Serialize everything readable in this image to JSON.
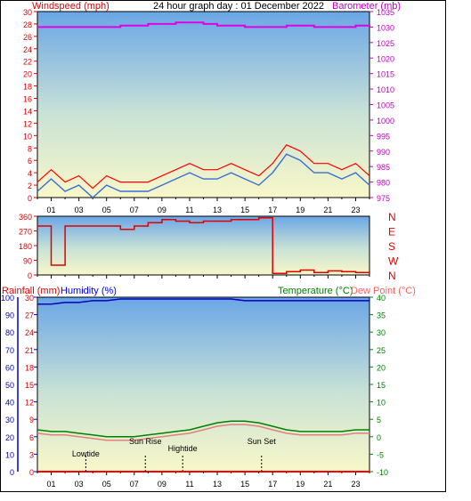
{
  "title": "24 hour graph day : 01 December 2022",
  "colors": {
    "wind": "#e00000",
    "gust": "#ff0000",
    "avg": "#3a6fd0",
    "baro": "#e000e0",
    "dir": "#e00000",
    "humidity": "#0000c0",
    "temp": "#008000",
    "dew": "#e08080",
    "rain": "#ff0000",
    "label_red": "#ff0000",
    "label_purple": "#c000c0",
    "label_green": "#008000",
    "label_blue": "#0000ff",
    "label_pink": "#ff6060"
  },
  "x_ticks": [
    "01",
    "03",
    "05",
    "07",
    "09",
    "11",
    "13",
    "15",
    "17",
    "19",
    "21",
    "23"
  ],
  "chart_data": [
    {
      "type": "line",
      "title": "24 hour graph day : 01 December 2022",
      "ylabel": "Windspeed (mph)",
      "y2label": "Barometer (mb)",
      "ylim": [
        0,
        30
      ],
      "y_ticks": [
        "0",
        "2",
        "4",
        "6",
        "8",
        "10",
        "12",
        "14",
        "16",
        "18",
        "20",
        "22",
        "24",
        "26",
        "28",
        "30"
      ],
      "y2lim": [
        975,
        1035
      ],
      "y2_ticks": [
        "975",
        "980",
        "985",
        "990",
        "995",
        "1000",
        "1005",
        "1010",
        "1015",
        "1020",
        "1025",
        "1030",
        "1035"
      ],
      "x": [
        0,
        1,
        2,
        3,
        4,
        5,
        6,
        7,
        8,
        9,
        10,
        11,
        12,
        13,
        14,
        15,
        16,
        17,
        18,
        19,
        20,
        21,
        22,
        23,
        24
      ],
      "series": [
        {
          "name": "Windspeed",
          "values": [
            1,
            3,
            1,
            2,
            0,
            2,
            1,
            1,
            1,
            2,
            3,
            4,
            3,
            3,
            4,
            3,
            2,
            4,
            7,
            6,
            4,
            4,
            3,
            4,
            2
          ]
        },
        {
          "name": "Barometer",
          "values": [
            1030,
            1030,
            1030,
            1030,
            1030,
            1030,
            1030.5,
            1030.5,
            1031,
            1031,
            1031.5,
            1031.5,
            1031,
            1030.5,
            1030.5,
            1030,
            1030,
            1030,
            1030.5,
            1030.5,
            1030,
            1030,
            1030,
            1030.5,
            1030
          ]
        }
      ]
    },
    {
      "type": "line",
      "ylim": [
        0,
        360
      ],
      "y_ticks": [
        "0",
        "90",
        "180",
        "270",
        "360"
      ],
      "y2_ticks": [
        "N",
        "W",
        "S",
        "E",
        "N"
      ],
      "x": [
        0,
        1,
        2,
        3,
        4,
        5,
        6,
        7,
        8,
        9,
        10,
        11,
        12,
        13,
        14,
        15,
        16,
        17,
        18,
        19,
        20,
        21,
        22,
        23,
        24
      ],
      "series": [
        {
          "name": "Wind Direction",
          "values": [
            300,
            60,
            300,
            300,
            300,
            300,
            280,
            300,
            320,
            340,
            330,
            320,
            330,
            330,
            340,
            340,
            350,
            10,
            20,
            30,
            15,
            25,
            20,
            15,
            20
          ]
        }
      ]
    },
    {
      "type": "line",
      "ylabel": "Rainfall (mm)",
      "ylabel2": "Humidity (%)",
      "y2label": "Temperature (°C)",
      "y2label2": "Dew Point (°C)",
      "ylim": [
        0,
        100
      ],
      "y_ticks": [
        "0",
        "10",
        "20",
        "30",
        "40",
        "50",
        "60",
        "70",
        "80",
        "90",
        "100"
      ],
      "rain_ticks": [
        "0",
        "3",
        "6",
        "9",
        "12",
        "15",
        "18",
        "21",
        "24",
        "27",
        "30"
      ],
      "y2lim": [
        -10,
        40
      ],
      "y2_ticks": [
        "-10",
        "-5",
        "0",
        "5",
        "10",
        "15",
        "20",
        "25",
        "30",
        "35",
        "40"
      ],
      "x": [
        0,
        1,
        2,
        3,
        4,
        5,
        6,
        7,
        8,
        9,
        10,
        11,
        12,
        13,
        14,
        15,
        16,
        17,
        18,
        19,
        20,
        21,
        22,
        23,
        24
      ],
      "series": [
        {
          "name": "Humidity",
          "values": [
            96,
            96,
            97,
            97,
            98,
            98,
            99,
            99,
            99,
            99,
            99,
            99,
            99,
            99,
            99,
            98,
            98,
            98,
            98,
            98,
            98,
            98,
            98,
            98,
            98
          ]
        },
        {
          "name": "Temperature",
          "values": [
            2,
            1.5,
            1.5,
            1,
            0.5,
            0,
            0,
            0,
            0.5,
            1,
            1.5,
            2,
            3,
            4,
            4.5,
            4.5,
            4,
            3,
            2,
            1.5,
            1.5,
            1.5,
            1.5,
            2,
            2
          ]
        },
        {
          "name": "Dew Point",
          "values": [
            1,
            0.5,
            0.5,
            0,
            -0.5,
            -1,
            -1,
            -1,
            -0.5,
            0,
            0.5,
            1,
            2,
            3,
            3.5,
            3.5,
            3,
            2,
            1,
            0.5,
            0.5,
            0.5,
            0.5,
            1,
            1
          ]
        },
        {
          "name": "Rainfall",
          "values": [
            0,
            0,
            0,
            0,
            0,
            0,
            0,
            0,
            0,
            0,
            0,
            0,
            0,
            0,
            0,
            0,
            0,
            0,
            0,
            0,
            0,
            0,
            0,
            0,
            0
          ]
        }
      ],
      "annotations": [
        {
          "text": "Lowtide",
          "x": 3.5
        },
        {
          "text": "Sun Rise",
          "x": 7.8
        },
        {
          "text": "Hightide",
          "x": 10.5
        },
        {
          "text": "Sun Set",
          "x": 16.2
        }
      ]
    }
  ]
}
